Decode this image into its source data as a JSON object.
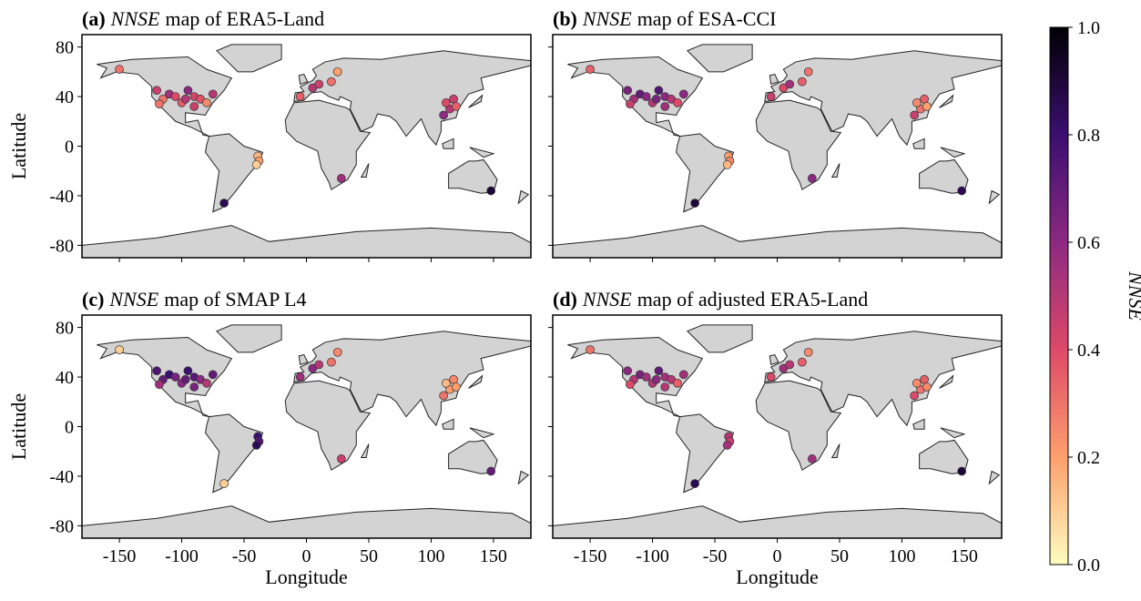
{
  "chart_data": [
    {
      "type": "scatter",
      "panel": "(a)",
      "title_var": "NNSE",
      "title": "map of  ERA5-Land",
      "xlim": [
        -180,
        180
      ],
      "ylim": [
        -90,
        90
      ],
      "xticks": [
        -150,
        -100,
        -50,
        0,
        50,
        100,
        150
      ],
      "yticks": [
        -80,
        -40,
        0,
        40,
        80
      ],
      "show_xticklabels": false,
      "show_yticklabels": true,
      "ylabel": "Latitude",
      "x": [
        -120,
        -115,
        -110,
        -105,
        -100,
        -97,
        -95,
        -90,
        -85,
        -80,
        -75,
        -118,
        -90,
        -150,
        -66,
        -39,
        -38,
        -40,
        5,
        10,
        20,
        25,
        -5,
        115,
        112,
        118,
        110,
        120,
        148,
        28
      ],
      "y": [
        45,
        38,
        42,
        40,
        35,
        38,
        45,
        40,
        38,
        35,
        42,
        34,
        32,
        62,
        -46,
        -8,
        -12,
        -15,
        47,
        50,
        52,
        60,
        40,
        30,
        35,
        38,
        25,
        32,
        -36,
        -26
      ],
      "values": [
        0.45,
        0.3,
        0.55,
        0.4,
        0.35,
        0.5,
        0.6,
        0.42,
        0.38,
        0.25,
        0.5,
        0.3,
        0.45,
        0.3,
        0.85,
        0.15,
        0.2,
        0.1,
        0.5,
        0.45,
        0.3,
        0.2,
        0.35,
        0.5,
        0.4,
        0.45,
        0.6,
        0.35,
        0.9,
        0.55
      ]
    },
    {
      "type": "scatter",
      "panel": "(b)",
      "title_var": "NNSE",
      "title": "map of  ESA-CCI",
      "xlim": [
        -180,
        180
      ],
      "ylim": [
        -90,
        90
      ],
      "xticks": [
        -150,
        -100,
        -50,
        0,
        50,
        100,
        150
      ],
      "yticks": [
        -80,
        -40,
        0,
        40,
        80
      ],
      "show_xticklabels": false,
      "show_yticklabels": false,
      "x": [
        -120,
        -115,
        -110,
        -105,
        -100,
        -97,
        -95,
        -90,
        -85,
        -80,
        -75,
        -118,
        -90,
        -150,
        -66,
        -39,
        -38,
        -40,
        5,
        10,
        20,
        25,
        -5,
        115,
        112,
        118,
        110,
        120,
        148,
        28
      ],
      "y": [
        45,
        38,
        42,
        40,
        35,
        38,
        45,
        40,
        38,
        35,
        42,
        34,
        32,
        62,
        -46,
        -8,
        -12,
        -15,
        47,
        50,
        52,
        60,
        40,
        30,
        35,
        38,
        25,
        32,
        -36,
        -26
      ],
      "values": [
        0.65,
        0.55,
        0.7,
        0.6,
        0.5,
        0.65,
        0.75,
        0.6,
        0.5,
        0.4,
        0.6,
        0.45,
        0.55,
        0.35,
        0.9,
        0.2,
        0.25,
        0.15,
        0.4,
        0.55,
        0.35,
        0.3,
        0.45,
        0.3,
        0.25,
        0.35,
        0.45,
        0.2,
        0.85,
        0.6
      ]
    },
    {
      "type": "scatter",
      "panel": "(c)",
      "title_var": "NNSE",
      "title": "map of  SMAP L4",
      "xlim": [
        -180,
        180
      ],
      "ylim": [
        -90,
        90
      ],
      "xticks": [
        -150,
        -100,
        -50,
        0,
        50,
        100,
        150
      ],
      "yticks": [
        -80,
        -40,
        0,
        40,
        80
      ],
      "show_xticklabels": true,
      "show_yticklabels": true,
      "xlabel": "Longitude",
      "ylabel": "Latitude",
      "x": [
        -120,
        -115,
        -110,
        -105,
        -100,
        -97,
        -95,
        -90,
        -85,
        -80,
        -75,
        -118,
        -90,
        -150,
        -66,
        -39,
        -38,
        -40,
        5,
        10,
        20,
        25,
        -5,
        115,
        112,
        118,
        110,
        120,
        148,
        28
      ],
      "y": [
        45,
        38,
        42,
        40,
        35,
        38,
        45,
        40,
        38,
        35,
        42,
        34,
        32,
        62,
        -46,
        -8,
        -12,
        -15,
        47,
        50,
        52,
        60,
        40,
        30,
        35,
        38,
        25,
        32,
        -36,
        -26
      ],
      "values": [
        0.75,
        0.7,
        0.8,
        0.65,
        0.6,
        0.7,
        0.8,
        0.72,
        0.6,
        0.5,
        0.7,
        0.55,
        0.65,
        0.1,
        0.1,
        0.8,
        0.75,
        0.85,
        0.6,
        0.5,
        0.3,
        0.25,
        0.55,
        0.2,
        0.15,
        0.25,
        0.3,
        0.2,
        0.7,
        0.45
      ]
    },
    {
      "type": "scatter",
      "panel": "(d)",
      "title_var": "NNSE",
      "title": "map of  adjusted ERA5-Land",
      "xlim": [
        -180,
        180
      ],
      "ylim": [
        -90,
        90
      ],
      "xticks": [
        -150,
        -100,
        -50,
        0,
        50,
        100,
        150
      ],
      "yticks": [
        -80,
        -40,
        0,
        40,
        80
      ],
      "show_xticklabels": true,
      "show_yticklabels": false,
      "xlabel": "Longitude",
      "x": [
        -120,
        -115,
        -110,
        -105,
        -100,
        -97,
        -95,
        -90,
        -85,
        -80,
        -75,
        -118,
        -90,
        -150,
        -66,
        -39,
        -38,
        -40,
        5,
        10,
        20,
        25,
        -5,
        115,
        112,
        118,
        110,
        120,
        148,
        28
      ],
      "y": [
        45,
        38,
        42,
        40,
        35,
        38,
        45,
        40,
        38,
        35,
        42,
        34,
        32,
        62,
        -46,
        -8,
        -12,
        -15,
        47,
        50,
        52,
        60,
        40,
        30,
        35,
        38,
        25,
        32,
        -36,
        -26
      ],
      "values": [
        0.6,
        0.5,
        0.65,
        0.55,
        0.5,
        0.6,
        0.7,
        0.55,
        0.5,
        0.35,
        0.55,
        0.4,
        0.5,
        0.3,
        0.85,
        0.5,
        0.45,
        0.55,
        0.55,
        0.5,
        0.35,
        0.25,
        0.4,
        0.3,
        0.25,
        0.35,
        0.4,
        0.25,
        0.9,
        0.55
      ]
    },
    {
      "type": "colorbar",
      "label": "NNSE",
      "ylim": [
        0,
        1
      ],
      "yticks": [
        {
          "value": 0,
          "label": "0.0"
        },
        0.2,
        0.4,
        0.6,
        0.8,
        {
          "value": 1,
          "label": "1.0"
        }
      ],
      "colors": [
        "#fcfdbf",
        "#fe9f6d",
        "#de4968",
        "#8c2981",
        "#3b0f70",
        "#000004"
      ]
    }
  ]
}
